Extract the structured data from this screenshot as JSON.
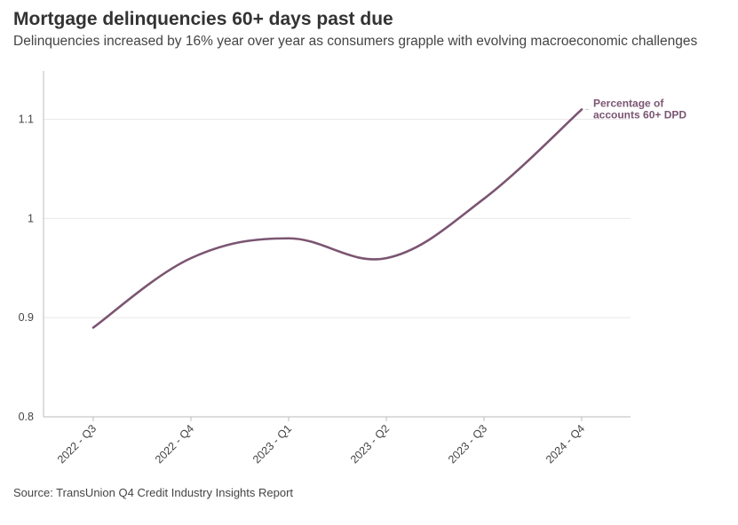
{
  "title": "Mortgage delinquencies 60+ days past due",
  "subtitle": "Delinquencies increased by 16% year over year as consumers grapple with evolving macroeconomic challenges",
  "source": "Source: TransUnion Q4 Credit Industry Insights Report",
  "colors": {
    "series": "#7b5572",
    "grid": "#e8e8e8",
    "axis": "#bbbbbb",
    "text": "#444444"
  },
  "chart_data": {
    "type": "line",
    "title": "Mortgage delinquencies 60+ days past due",
    "categories": [
      "2022 - Q3",
      "2022 - Q4",
      "2023 - Q1",
      "2023 - Q2",
      "2023 - Q3",
      "2024 - Q4"
    ],
    "series": [
      {
        "name": "Percentage of accounts 60+ DPD",
        "label_lines": [
          "Percentage of",
          "accounts 60+ DPD"
        ],
        "values": [
          0.89,
          0.96,
          0.98,
          0.96,
          1.02,
          1.11
        ]
      }
    ],
    "ylim": [
      0.8,
      1.15
    ],
    "yticks": [
      0.8,
      0.9,
      1,
      1.1
    ],
    "ytick_labels": [
      "0.8",
      "0.9",
      "1",
      "1.1"
    ],
    "xlabel": "",
    "ylabel": "",
    "grid": true,
    "smooth": true
  }
}
